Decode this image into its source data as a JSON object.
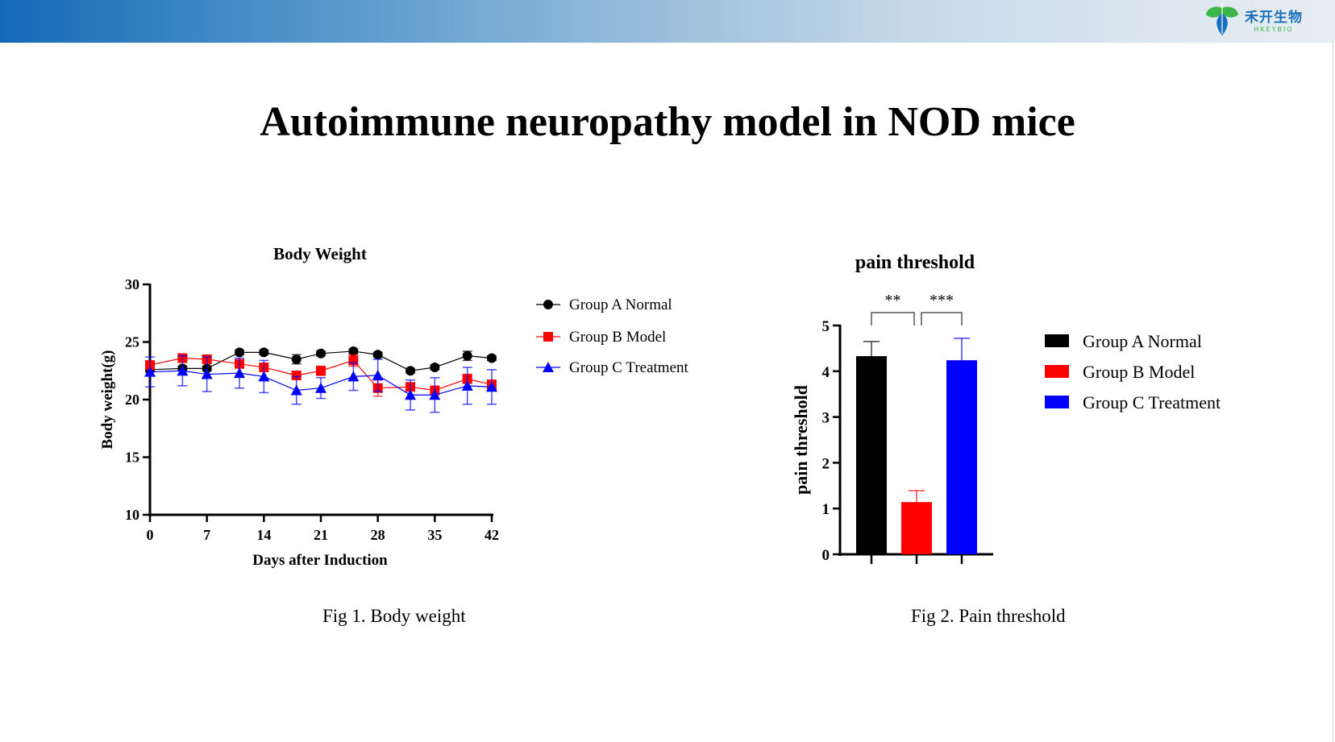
{
  "header": {
    "logo_cn": "禾开生物",
    "logo_en": "HKEYBIO",
    "brand_colors": {
      "blue": "#1a6fba",
      "green": "#3bb54a"
    }
  },
  "slide": {
    "title": "Autoimmune neuropathy model in NOD mice",
    "captions": [
      "Fig 1. Body weight",
      "Fig 2. Pain threshold"
    ]
  },
  "chart_data": [
    {
      "type": "line",
      "title": "Body Weight",
      "xlabel": "Days after Induction",
      "ylabel": "Body weight(g)",
      "xlim": [
        0,
        42
      ],
      "ylim": [
        10,
        30
      ],
      "xticks": [
        "0",
        "7",
        "14",
        "21",
        "28",
        "35",
        "42"
      ],
      "yticks": [
        "10",
        "15",
        "20",
        "25",
        "30"
      ],
      "grid": false,
      "legend": "right",
      "x": [
        0,
        4,
        7,
        11,
        14,
        18,
        21,
        25,
        28,
        32,
        35,
        39,
        42
      ],
      "series": [
        {
          "name": "Group A Normal",
          "color": "#000000",
          "marker": "circle",
          "values": [
            22.6,
            22.7,
            22.7,
            24.1,
            24.1,
            23.5,
            24.0,
            24.2,
            23.9,
            22.5,
            22.8,
            23.8,
            23.6
          ],
          "errors": [
            0.2,
            0.2,
            0.2,
            0.2,
            0.2,
            0.4,
            0.2,
            0.2,
            0.2,
            0.2,
            0.2,
            0.4,
            0.2
          ]
        },
        {
          "name": "Group B Model",
          "color": "#ff0000",
          "marker": "square",
          "values": [
            23.0,
            23.6,
            23.5,
            23.1,
            22.8,
            22.1,
            22.5,
            23.4,
            21.0,
            21.1,
            20.8,
            21.8,
            21.3
          ],
          "errors": [
            0.3,
            0.2,
            0.2,
            0.3,
            0.3,
            0.3,
            0.4,
            0.5,
            0.7,
            0.3,
            0.3,
            0.4,
            0.4
          ]
        },
        {
          "name": "Group C Treatment",
          "color": "#0000ff",
          "marker": "triangle",
          "values": [
            22.4,
            22.5,
            22.2,
            22.3,
            22.0,
            20.8,
            21.0,
            22.0,
            22.1,
            20.4,
            20.4,
            21.2,
            21.1
          ],
          "errors": [
            1.3,
            1.3,
            1.5,
            1.3,
            1.4,
            1.2,
            0.9,
            1.2,
            1.4,
            1.3,
            1.5,
            1.6,
            1.5
          ]
        }
      ]
    },
    {
      "type": "bar",
      "title": "pain threshold",
      "ylabel": "pain threshold",
      "ylim": [
        0,
        5
      ],
      "yticks": [
        "0",
        "1",
        "2",
        "3",
        "4",
        "5"
      ],
      "grid": false,
      "legend": "right",
      "categories": [
        "Group A Normal",
        "Group B Model",
        "Group C Treatment"
      ],
      "values": [
        4.33,
        1.14,
        4.24
      ],
      "errors": [
        0.32,
        0.25,
        0.48
      ],
      "colors": [
        "#000000",
        "#ff0000",
        "#0000ff"
      ],
      "annotations": [
        {
          "label": "**",
          "from": "Group A Normal",
          "to": "Group B Model"
        },
        {
          "label": "***",
          "from": "Group B Model",
          "to": "Group C Treatment"
        }
      ]
    }
  ]
}
